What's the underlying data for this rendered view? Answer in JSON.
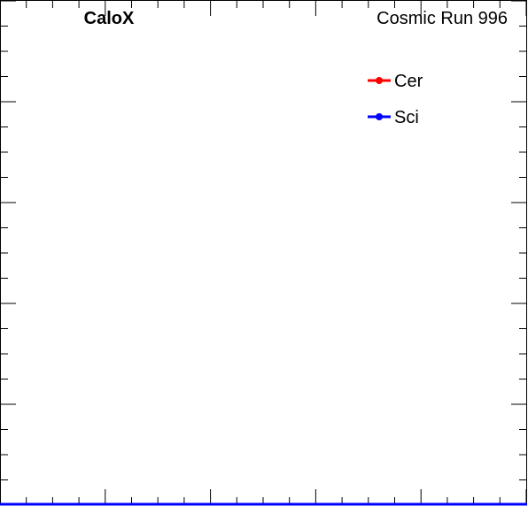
{
  "chart_data": {
    "type": "line",
    "title_left": "CaloX",
    "title_right": "Cosmic Run 996",
    "xlabel": "",
    "ylabel": "",
    "xlim": [
      0,
      1
    ],
    "ylim": [
      0,
      1
    ],
    "grid": false,
    "legend_placement": "top-right",
    "series": [
      {
        "name": "Cer",
        "color": "#ff0000",
        "x": [
          0,
          1
        ],
        "y": [
          0,
          0
        ]
      },
      {
        "name": "Sci",
        "color": "#0000ff",
        "x": [
          0,
          1
        ],
        "y": [
          0,
          0
        ]
      }
    ]
  }
}
